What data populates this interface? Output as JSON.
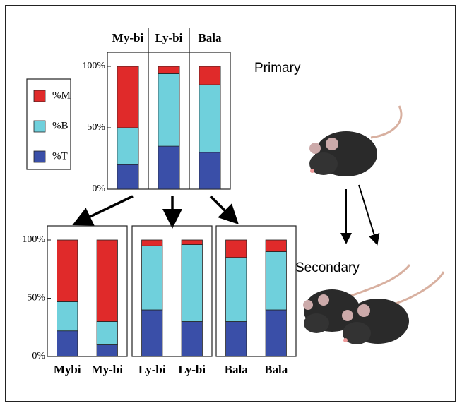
{
  "chart_data": [
    {
      "type": "bar",
      "stacked": true,
      "annotation": "Primary",
      "categories": [
        "My-bi",
        "Ly-bi",
        "Bala"
      ],
      "series": [
        {
          "name": "%T",
          "color": "#3a4fa8",
          "values": [
            20,
            35,
            30
          ]
        },
        {
          "name": "%B",
          "color": "#6fd0dc",
          "values": [
            30,
            59,
            55
          ]
        },
        {
          "name": "%M",
          "color": "#e02a2a",
          "values": [
            50,
            6,
            15
          ]
        }
      ],
      "ylim": [
        0,
        100
      ],
      "yticks": [
        {
          "value": 0,
          "label": "0%"
        },
        {
          "value": 50,
          "label": "50%"
        },
        {
          "value": 100,
          "label": "100%"
        }
      ]
    },
    {
      "type": "bar",
      "stacked": true,
      "annotation": "Secondary",
      "categories": [
        "Mybi",
        "My-bi"
      ],
      "series": [
        {
          "color": "#3a4fa8",
          "values": [
            22,
            10
          ]
        },
        {
          "color": "#6fd0dc",
          "values": [
            25,
            20
          ]
        },
        {
          "color": "#e02a2a",
          "values": [
            53,
            70
          ]
        }
      ],
      "ylim": [
        0,
        100
      ],
      "yticks": [
        {
          "value": 0,
          "label": "0%"
        },
        {
          "value": 50,
          "label": "50%"
        },
        {
          "value": 100,
          "label": "100%"
        }
      ]
    },
    {
      "type": "bar",
      "stacked": true,
      "categories": [
        "Ly-bi",
        "Ly-bi"
      ],
      "series": [
        {
          "color": "#3a4fa8",
          "values": [
            40,
            30
          ]
        },
        {
          "color": "#6fd0dc",
          "values": [
            55,
            66
          ]
        },
        {
          "color": "#e02a2a",
          "values": [
            5,
            4
          ]
        }
      ],
      "ylim": [
        0,
        100
      ]
    },
    {
      "type": "bar",
      "stacked": true,
      "categories": [
        "Bala",
        "Bala"
      ],
      "series": [
        {
          "color": "#3a4fa8",
          "values": [
            30,
            40
          ]
        },
        {
          "color": "#6fd0dc",
          "values": [
            55,
            50
          ]
        },
        {
          "color": "#e02a2a",
          "values": [
            15,
            10
          ]
        }
      ],
      "ylim": [
        0,
        100
      ]
    }
  ]
}
